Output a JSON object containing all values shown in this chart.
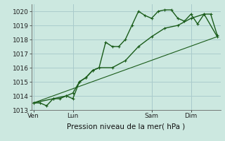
{
  "title": "",
  "xlabel": "Pression niveau de la mer( hPa )",
  "ylabel": "",
  "bg_color": "#cce8e0",
  "grid_color": "#aacccc",
  "line_color": "#1a5c1a",
  "ylim": [
    1013,
    1020.5
  ],
  "yticks": [
    1013,
    1014,
    1015,
    1016,
    1017,
    1018,
    1019,
    1020
  ],
  "day_labels": [
    "Ven",
    "Lun",
    "Sam",
    "Dim"
  ],
  "day_positions": [
    0,
    6,
    18,
    24
  ],
  "xlim": [
    -0.3,
    28.5
  ],
  "line1_x": [
    0,
    1,
    2,
    3,
    4,
    5,
    6,
    7,
    8,
    9,
    10,
    11,
    12,
    13,
    14,
    15,
    16,
    17,
    18,
    19,
    20,
    21,
    22,
    23,
    24,
    25,
    26,
    27,
    28
  ],
  "line1_y": [
    1013.5,
    1013.5,
    1013.3,
    1013.8,
    1013.8,
    1014.0,
    1013.8,
    1015.0,
    1015.3,
    1015.8,
    1016.0,
    1017.8,
    1017.5,
    1017.5,
    1018.0,
    1019.0,
    1020.0,
    1019.7,
    1019.5,
    1020.0,
    1020.1,
    1020.1,
    1019.5,
    1019.3,
    1019.8,
    1019.1,
    1019.8,
    1019.8,
    1018.3
  ],
  "line2_x": [
    0,
    3,
    5,
    6,
    7,
    8,
    9,
    10,
    12,
    14,
    16,
    18,
    20,
    22,
    24,
    26,
    28
  ],
  "line2_y": [
    1013.5,
    1013.8,
    1014.0,
    1014.2,
    1015.0,
    1015.3,
    1015.8,
    1016.0,
    1016.0,
    1016.5,
    1017.5,
    1018.2,
    1018.8,
    1019.0,
    1019.5,
    1019.8,
    1018.2
  ],
  "line3_x": [
    0,
    28
  ],
  "line3_y": [
    1013.5,
    1018.2
  ]
}
